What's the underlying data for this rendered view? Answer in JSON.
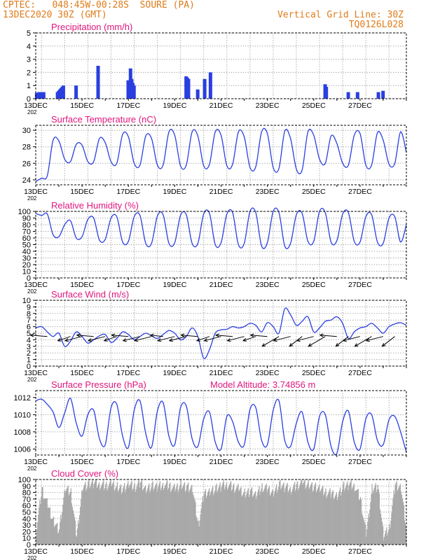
{
  "header": {
    "line1": "CPTEC:   048:45W-00:28S  SOURE (PA)",
    "line2": "13DEC2020 30Z (GMT)",
    "grid_note": "Vertical Grid Line: 30Z",
    "run_id": "TQ0126L028"
  },
  "colors": {
    "header": "#e07b1a",
    "title": "#e0167e",
    "line": "#2a3fe0",
    "bar": "#2a3fe0",
    "cloud": "#a9a9a9",
    "grid": "#9a9a9a"
  },
  "x_tick_labels": [
    "13DEC",
    "15DEC",
    "17DEC",
    "19DEC",
    "21DEC",
    "23DEC",
    "25DEC",
    "27DEC"
  ],
  "x_clipped_label": "202",
  "chart_data": [
    {
      "id": "precip",
      "type": "bar",
      "title": "Precipitation (mm/h)",
      "ylim": [
        0,
        5
      ],
      "yticks": [
        0,
        1,
        2,
        3,
        4,
        5
      ],
      "x_unit": "days since 13DEC 00Z",
      "points": [
        [
          0.05,
          0.45
        ],
        [
          0.15,
          0.5
        ],
        [
          0.25,
          0.5
        ],
        [
          0.35,
          0.5
        ],
        [
          0.95,
          0.5
        ],
        [
          1.0,
          0.6
        ],
        [
          1.05,
          0.7
        ],
        [
          1.1,
          0.8
        ],
        [
          1.15,
          0.9
        ],
        [
          1.2,
          1.0
        ],
        [
          1.75,
          1.0
        ],
        [
          2.7,
          2.5
        ],
        [
          4.0,
          1.4
        ],
        [
          4.05,
          1.2
        ],
        [
          4.1,
          2.3
        ],
        [
          4.15,
          1.5
        ],
        [
          4.2,
          1.2
        ],
        [
          4.25,
          1.0
        ],
        [
          6.5,
          1.7
        ],
        [
          6.55,
          1.6
        ],
        [
          6.6,
          1.5
        ],
        [
          7.0,
          0.7
        ],
        [
          7.3,
          1.5
        ],
        [
          7.55,
          2.0
        ],
        [
          12.5,
          1.1
        ],
        [
          12.55,
          0.9
        ],
        [
          13.5,
          0.5
        ],
        [
          13.9,
          0.5
        ],
        [
          14.8,
          0.5
        ],
        [
          15.0,
          0.6
        ]
      ]
    },
    {
      "id": "temp",
      "type": "line",
      "title": "Surface Temperature (nC)",
      "ylim": [
        23.4,
        30.6
      ],
      "yticks": [
        24,
        26,
        28,
        30
      ],
      "x": [
        0,
        0.25,
        0.5,
        0.75,
        1,
        1.25,
        1.5,
        1.75,
        2,
        2.25,
        2.5,
        2.75,
        3,
        3.25,
        3.5,
        3.75,
        4,
        4.25,
        4.5,
        4.75,
        5,
        5.25,
        5.5,
        5.75,
        6,
        6.25,
        6.5,
        6.75,
        7,
        7.25,
        7.5,
        7.75,
        8,
        8.25,
        8.5,
        8.75,
        9,
        9.25,
        9.5,
        9.75,
        10,
        10.25,
        10.5,
        10.75,
        11,
        11.25,
        11.5,
        11.75,
        12,
        12.25,
        12.5,
        12.75,
        13,
        13.25,
        13.5,
        13.75,
        14,
        14.25,
        14.5,
        14.75,
        15,
        15.25,
        15.5,
        15.75,
        16
      ],
      "values": [
        23.8,
        24.2,
        24.5,
        28.8,
        28.7,
        26.5,
        26.2,
        28.3,
        28.2,
        26.2,
        26.2,
        29.0,
        28.5,
        26.2,
        26.0,
        29.5,
        29.2,
        26.0,
        25.8,
        29.3,
        29.0,
        25.8,
        25.8,
        29.8,
        29.4,
        25.7,
        25.8,
        29.8,
        29.3,
        25.7,
        25.9,
        29.8,
        29.4,
        25.7,
        25.9,
        29.8,
        29.2,
        25.5,
        25.6,
        29.8,
        29.6,
        25.5,
        25.4,
        29.9,
        29.0,
        25.3,
        25.2,
        29.8,
        29.4,
        26.5,
        26.0,
        29.3,
        28.4,
        26.0,
        25.8,
        29.4,
        29.6,
        25.8,
        25.8,
        29.7,
        28.8,
        25.9,
        26.0,
        29.8,
        27.3
      ]
    },
    {
      "id": "rh",
      "type": "line",
      "title": "Relative Humidity (%)",
      "ylim": [
        0,
        100
      ],
      "yticks": [
        0,
        10,
        20,
        30,
        40,
        50,
        60,
        70,
        80,
        90,
        100
      ],
      "x": [
        0,
        0.25,
        0.5,
        0.75,
        1,
        1.25,
        1.5,
        1.75,
        2,
        2.25,
        2.5,
        2.75,
        3,
        3.25,
        3.5,
        3.75,
        4,
        4.25,
        4.5,
        4.75,
        5,
        5.25,
        5.5,
        5.75,
        6,
        6.25,
        6.5,
        6.75,
        7,
        7.25,
        7.5,
        7.75,
        8,
        8.25,
        8.5,
        8.75,
        9,
        9.25,
        9.5,
        9.75,
        10,
        10.25,
        10.5,
        10.75,
        11,
        11.25,
        11.5,
        11.75,
        12,
        12.25,
        12.5,
        12.75,
        13,
        13.25,
        13.5,
        13.75,
        14,
        14.25,
        14.5,
        14.75,
        15,
        15.25,
        15.5,
        15.75,
        16
      ],
      "values": [
        97,
        94,
        96,
        65,
        62,
        80,
        86,
        60,
        62,
        88,
        90,
        57,
        58,
        90,
        92,
        54,
        55,
        92,
        94,
        52,
        52,
        93,
        95,
        52,
        53,
        94,
        95,
        52,
        52,
        96,
        97,
        50,
        53,
        96,
        98,
        50,
        52,
        100,
        98,
        48,
        53,
        100,
        98,
        48,
        52,
        95,
        97,
        55,
        55,
        100,
        98,
        54,
        56,
        96,
        98,
        55,
        54,
        92,
        95,
        54,
        52,
        90,
        92,
        54,
        80
      ]
    },
    {
      "id": "wind",
      "type": "line",
      "title": "Surface Wind (m/s)",
      "ylim": [
        0,
        10
      ],
      "yticks": [
        0,
        1,
        2,
        3,
        4,
        5,
        6,
        7,
        8,
        9,
        10
      ],
      "x": [
        0,
        0.25,
        0.5,
        0.75,
        1,
        1.25,
        1.5,
        1.75,
        2,
        2.25,
        2.5,
        2.75,
        3,
        3.25,
        3.5,
        3.75,
        4,
        4.25,
        4.5,
        4.75,
        5,
        5.25,
        5.5,
        5.75,
        6,
        6.25,
        6.5,
        6.75,
        7,
        7.25,
        7.5,
        7.75,
        8,
        8.25,
        8.5,
        8.75,
        9,
        9.25,
        9.5,
        9.75,
        10,
        10.25,
        10.5,
        10.75,
        11,
        11.25,
        11.5,
        11.75,
        12,
        12.25,
        12.5,
        12.75,
        13,
        13.25,
        13.5,
        13.75,
        14,
        14.25,
        14.5,
        14.75,
        15,
        15.25,
        15.5,
        15.75,
        16
      ],
      "values": [
        5.8,
        6.0,
        5.2,
        4.5,
        5.0,
        3.0,
        3.8,
        5.2,
        4.5,
        3.5,
        4.0,
        4.6,
        4.8,
        3.6,
        4.2,
        5.2,
        4.8,
        4.0,
        4.5,
        5.0,
        4.6,
        4.2,
        4.8,
        5.4,
        5.0,
        4.0,
        4.5,
        5.8,
        4.5,
        1.2,
        2.5,
        5.0,
        5.5,
        5.6,
        6.0,
        5.8,
        6.0,
        6.5,
        6.2,
        5.2,
        6.6,
        6.0,
        5.0,
        8.7,
        7.8,
        6.2,
        6.8,
        7.5,
        5.2,
        5.8,
        6.8,
        7.0,
        7.5,
        6.5,
        4.2,
        5.2,
        5.8,
        6.0,
        6.5,
        5.8,
        5.0,
        6.0,
        6.4,
        6.6,
        6.2
      ],
      "arrows_x": [
        0.5,
        1.5,
        2.0,
        2.5,
        3.0,
        3.5,
        4.0,
        4.5,
        5.0,
        5.5,
        6.0,
        6.5,
        7.0,
        7.5,
        8.0,
        8.5,
        9.0,
        9.5,
        10.0,
        10.5,
        11.0,
        11.5,
        12.0,
        12.5,
        13.0,
        13.5,
        14.0,
        14.5,
        15.0,
        15.5
      ]
    },
    {
      "id": "pres",
      "type": "line",
      "title": "Surface Pressure (hPa)",
      "extra_label": "Model Altitude: 3.74856 m",
      "ylim": [
        1005.3,
        1012.8
      ],
      "yticks": [
        1006,
        1008,
        1010,
        1012
      ],
      "x": [
        0,
        0.25,
        0.5,
        0.75,
        1,
        1.25,
        1.5,
        1.75,
        2,
        2.25,
        2.5,
        2.75,
        3,
        3.25,
        3.5,
        3.75,
        4,
        4.25,
        4.5,
        4.75,
        5,
        5.25,
        5.5,
        5.75,
        6,
        6.25,
        6.5,
        6.75,
        7,
        7.25,
        7.5,
        7.75,
        8,
        8.25,
        8.5,
        8.75,
        9,
        9.25,
        9.5,
        9.75,
        10,
        10.25,
        10.5,
        10.75,
        11,
        11.25,
        11.5,
        11.75,
        12,
        12.25,
        12.5,
        12.75,
        13,
        13.25,
        13.5,
        13.75,
        14,
        14.25,
        14.5,
        14.75,
        15,
        15.25,
        15.5,
        15.75,
        16
      ],
      "values": [
        1011.6,
        1011.8,
        1011.2,
        1010.3,
        1008.5,
        1010.2,
        1011.9,
        1009.0,
        1007.5,
        1010.0,
        1010.5,
        1007.2,
        1006.5,
        1010.8,
        1011.2,
        1007.5,
        1006.2,
        1010.5,
        1011.6,
        1007.8,
        1006.2,
        1010.4,
        1011.4,
        1007.5,
        1006.5,
        1010.8,
        1011.0,
        1007.2,
        1006.3,
        1009.5,
        1010.3,
        1006.8,
        1006.0,
        1009.8,
        1009.2,
        1006.8,
        1006.5,
        1010.6,
        1010.8,
        1007.0,
        1006.5,
        1010.5,
        1011.6,
        1007.0,
        1006.3,
        1009.0,
        1010.3,
        1006.8,
        1006.0,
        1009.8,
        1010.0,
        1006.3,
        1005.5,
        1009.2,
        1010.4,
        1006.8,
        1006.0,
        1009.5,
        1010.0,
        1007.0,
        1006.5,
        1009.4,
        1009.8,
        1008.0,
        1005.6
      ]
    },
    {
      "id": "cloud",
      "type": "area",
      "title": "Cloud Cover (%)",
      "ylim": [
        0,
        100
      ],
      "yticks": [
        0,
        10,
        20,
        30,
        40,
        50,
        60,
        70,
        80,
        90,
        100
      ],
      "x": [
        0,
        0.25,
        0.5,
        0.75,
        1,
        1.25,
        1.5,
        1.75,
        2,
        2.25,
        2.5,
        2.75,
        3,
        3.25,
        3.5,
        3.75,
        4,
        4.25,
        4.5,
        4.75,
        5,
        5.25,
        5.5,
        5.75,
        6,
        6.25,
        6.5,
        6.75,
        7,
        7.25,
        7.5,
        7.75,
        8,
        8.25,
        8.5,
        8.75,
        9,
        9.25,
        9.5,
        9.75,
        10,
        10.25,
        10.5,
        10.75,
        11,
        11.25,
        11.5,
        11.75,
        12,
        12.25,
        12.5,
        12.75,
        13,
        13.25,
        13.5,
        13.75,
        14,
        14.25,
        14.5,
        14.75,
        15,
        15.25,
        15.5,
        15.75,
        16
      ],
      "values": [
        20,
        85,
        60,
        35,
        22,
        85,
        80,
        12,
        88,
        92,
        95,
        92,
        90,
        93,
        88,
        85,
        92,
        88,
        95,
        85,
        90,
        88,
        92,
        90,
        85,
        92,
        88,
        85,
        30,
        78,
        82,
        85,
        90,
        92,
        88,
        85,
        78,
        82,
        75,
        88,
        85,
        80,
        92,
        88,
        85,
        90,
        95,
        92,
        88,
        85,
        80,
        78,
        75,
        88,
        92,
        90,
        70,
        15,
        85,
        90,
        12,
        25,
        92,
        88,
        20
      ]
    }
  ]
}
